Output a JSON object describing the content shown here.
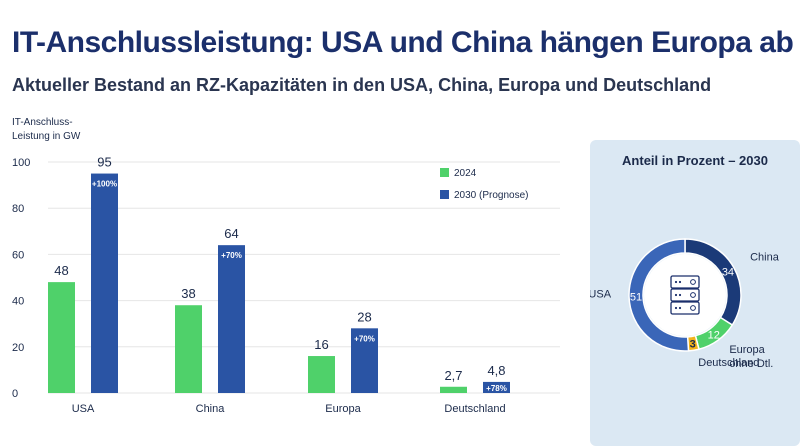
{
  "header": {
    "title": "IT-Anschlussleistung: USA und China hängen Europa ab",
    "subtitle": "Aktueller Bestand an RZ-Kapazitäten in den USA, China, Europa und Deutschland"
  },
  "colors": {
    "green": "#4fd16a",
    "blue": "#2a54a4",
    "navy": "#1b3a78",
    "mid_blue": "#3a66b8",
    "yellow": "#f2b21b",
    "panel_bg": "#dbe8f3",
    "icon": "#1b2f6b"
  },
  "chart_data": [
    {
      "type": "bar",
      "title": "",
      "ylabel": "IT-Anschluss-\nLeistung in GW",
      "ylim": [
        0,
        100
      ],
      "yticks": [
        0,
        20,
        40,
        60,
        80,
        100
      ],
      "grid": true,
      "legend_position": "top-right",
      "categories": [
        "USA",
        "China",
        "Europa",
        "Deutschland"
      ],
      "series": [
        {
          "name": "2024",
          "color": "#4fd16a",
          "values": [
            48,
            38,
            16,
            2.7
          ],
          "labels": [
            "48",
            "38",
            "16",
            "2,7"
          ]
        },
        {
          "name": "2030 (Prognose)",
          "color": "#2a54a4",
          "values": [
            95,
            64,
            28,
            4.8
          ],
          "labels": [
            "95",
            "64",
            "28",
            "4,8"
          ],
          "growth": [
            "+100%",
            "+70%",
            "+70%",
            "+78%"
          ]
        }
      ]
    },
    {
      "type": "pie",
      "title": "Anteil in Prozent – 2030",
      "slices": [
        {
          "name": "China",
          "value": 34,
          "label": "34",
          "color": "#1b3a78"
        },
        {
          "name": "Europa\nohne Dtl.",
          "value": 12,
          "label": "12",
          "color": "#4fd16a"
        },
        {
          "name": "Deutschland",
          "value": 3,
          "label": "3",
          "color": "#f2b21b"
        },
        {
          "name": "USA",
          "value": 51,
          "label": "51",
          "color": "#3a66b8"
        }
      ]
    }
  ]
}
